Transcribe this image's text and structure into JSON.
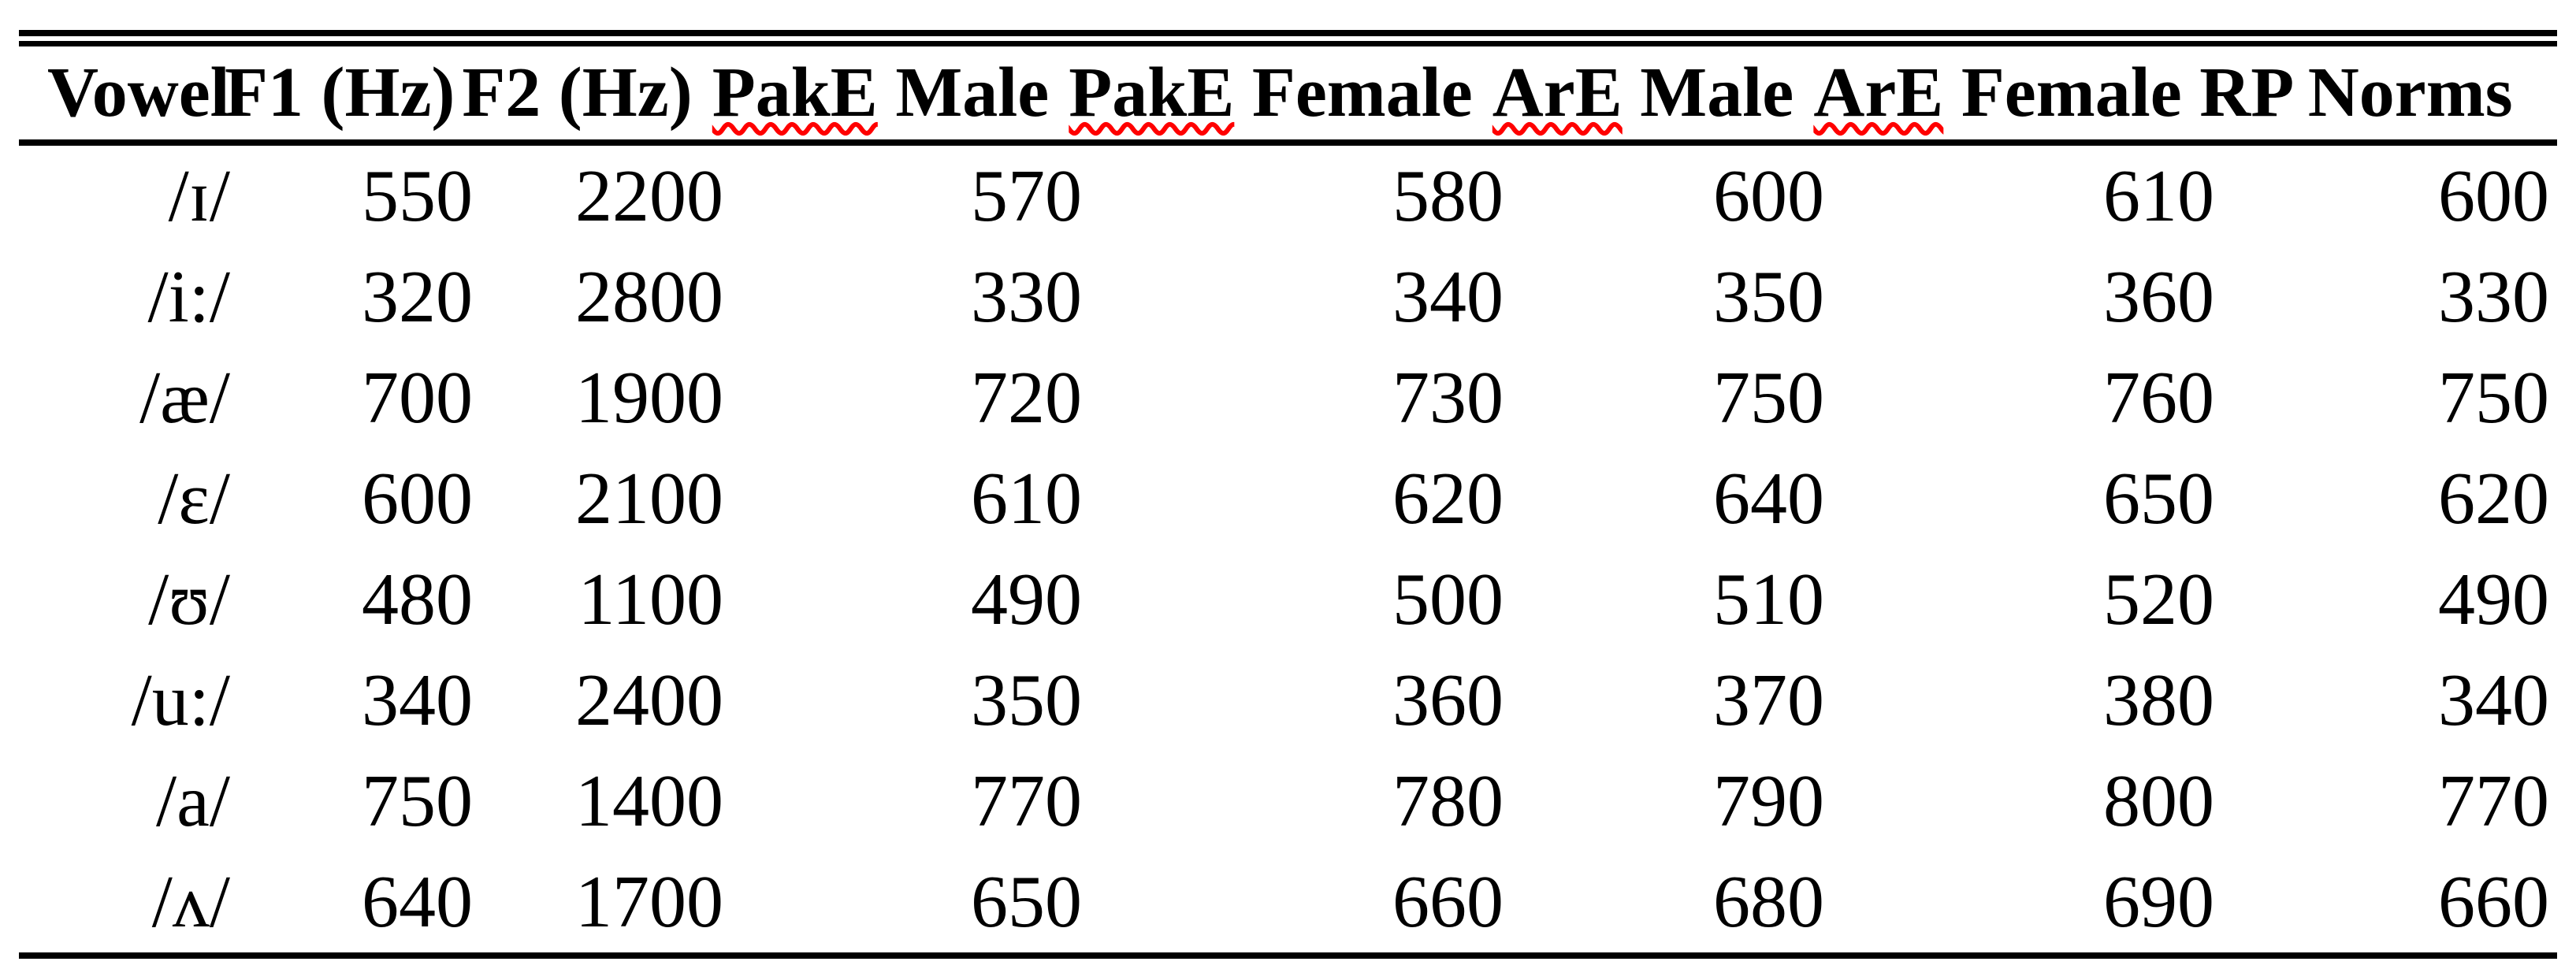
{
  "styling": {
    "text_color": "#000000",
    "rule_color": "#000000",
    "spellcheck_squiggle_color": "#ff0000"
  },
  "table": {
    "columns": [
      {
        "label": "Vowel",
        "slug": "vowel",
        "misspelled_word": null
      },
      {
        "label": "F1 (Hz)",
        "slug": "f1-hz",
        "misspelled_word": null
      },
      {
        "label": "F2 (Hz)",
        "slug": "f2-hz",
        "misspelled_word": null
      },
      {
        "label": "PakE Male",
        "slug": "pake-male",
        "misspelled_word": "PakE"
      },
      {
        "label": "PakE Female",
        "slug": "pake-female",
        "misspelled_word": "PakE"
      },
      {
        "label": "ArE Male",
        "slug": "are-male",
        "misspelled_word": "ArE"
      },
      {
        "label": "ArE Female",
        "slug": "are-female",
        "misspelled_word": "ArE"
      },
      {
        "label": "RP Norms",
        "slug": "rp-norms",
        "misspelled_word": null
      }
    ],
    "rows": [
      [
        "/ɪ/",
        "550",
        "2200",
        "570",
        "580",
        "600",
        "610",
        "600"
      ],
      [
        "/i:/",
        "320",
        "2800",
        "330",
        "340",
        "350",
        "360",
        "330"
      ],
      [
        "/æ/",
        "700",
        "1900",
        "720",
        "730",
        "750",
        "760",
        "750"
      ],
      [
        "/ɛ/",
        "600",
        "2100",
        "610",
        "620",
        "640",
        "650",
        "620"
      ],
      [
        "/ʊ/",
        "480",
        "1100",
        "490",
        "500",
        "510",
        "520",
        "490"
      ],
      [
        "/u:/",
        "340",
        "2400",
        "350",
        "360",
        "370",
        "380",
        "340"
      ],
      [
        "/a/",
        "750",
        "1400",
        "770",
        "780",
        "790",
        "800",
        "770"
      ],
      [
        "/ʌ/",
        "640",
        "1700",
        "650",
        "660",
        "680",
        "690",
        "660"
      ]
    ]
  },
  "chart_data": {
    "type": "table",
    "title": "Vowel formant frequencies (F1/F2) compared across PakE, ArE and RP norms",
    "columns": [
      "Vowel",
      "F1 (Hz)",
      "F2 (Hz)",
      "PakE Male",
      "PakE Female",
      "ArE Male",
      "ArE Female",
      "RP Norms"
    ],
    "rows": [
      {
        "vowel": "/ɪ/",
        "f1_hz": 550,
        "f2_hz": 2200,
        "pake_male": 570,
        "pake_female": 580,
        "are_male": 600,
        "are_female": 610,
        "rp_norms": 600
      },
      {
        "vowel": "/i:/",
        "f1_hz": 320,
        "f2_hz": 2800,
        "pake_male": 330,
        "pake_female": 340,
        "are_male": 350,
        "are_female": 360,
        "rp_norms": 330
      },
      {
        "vowel": "/æ/",
        "f1_hz": 700,
        "f2_hz": 1900,
        "pake_male": 720,
        "pake_female": 730,
        "are_male": 750,
        "are_female": 760,
        "rp_norms": 750
      },
      {
        "vowel": "/ɛ/",
        "f1_hz": 600,
        "f2_hz": 2100,
        "pake_male": 610,
        "pake_female": 620,
        "are_male": 640,
        "are_female": 650,
        "rp_norms": 620
      },
      {
        "vowel": "/ʊ/",
        "f1_hz": 480,
        "f2_hz": 1100,
        "pake_male": 490,
        "pake_female": 500,
        "are_male": 510,
        "are_female": 520,
        "rp_norms": 490
      },
      {
        "vowel": "/u:/",
        "f1_hz": 340,
        "f2_hz": 2400,
        "pake_male": 350,
        "pake_female": 360,
        "are_male": 370,
        "are_female": 380,
        "rp_norms": 340
      },
      {
        "vowel": "/a/",
        "f1_hz": 750,
        "f2_hz": 1400,
        "pake_male": 770,
        "pake_female": 780,
        "are_male": 790,
        "are_female": 800,
        "rp_norms": 770
      },
      {
        "vowel": "/ʌ/",
        "f1_hz": 640,
        "f2_hz": 1700,
        "pake_male": 650,
        "pake_female": 660,
        "are_male": 680,
        "are_female": 690,
        "rp_norms": 660
      }
    ]
  }
}
